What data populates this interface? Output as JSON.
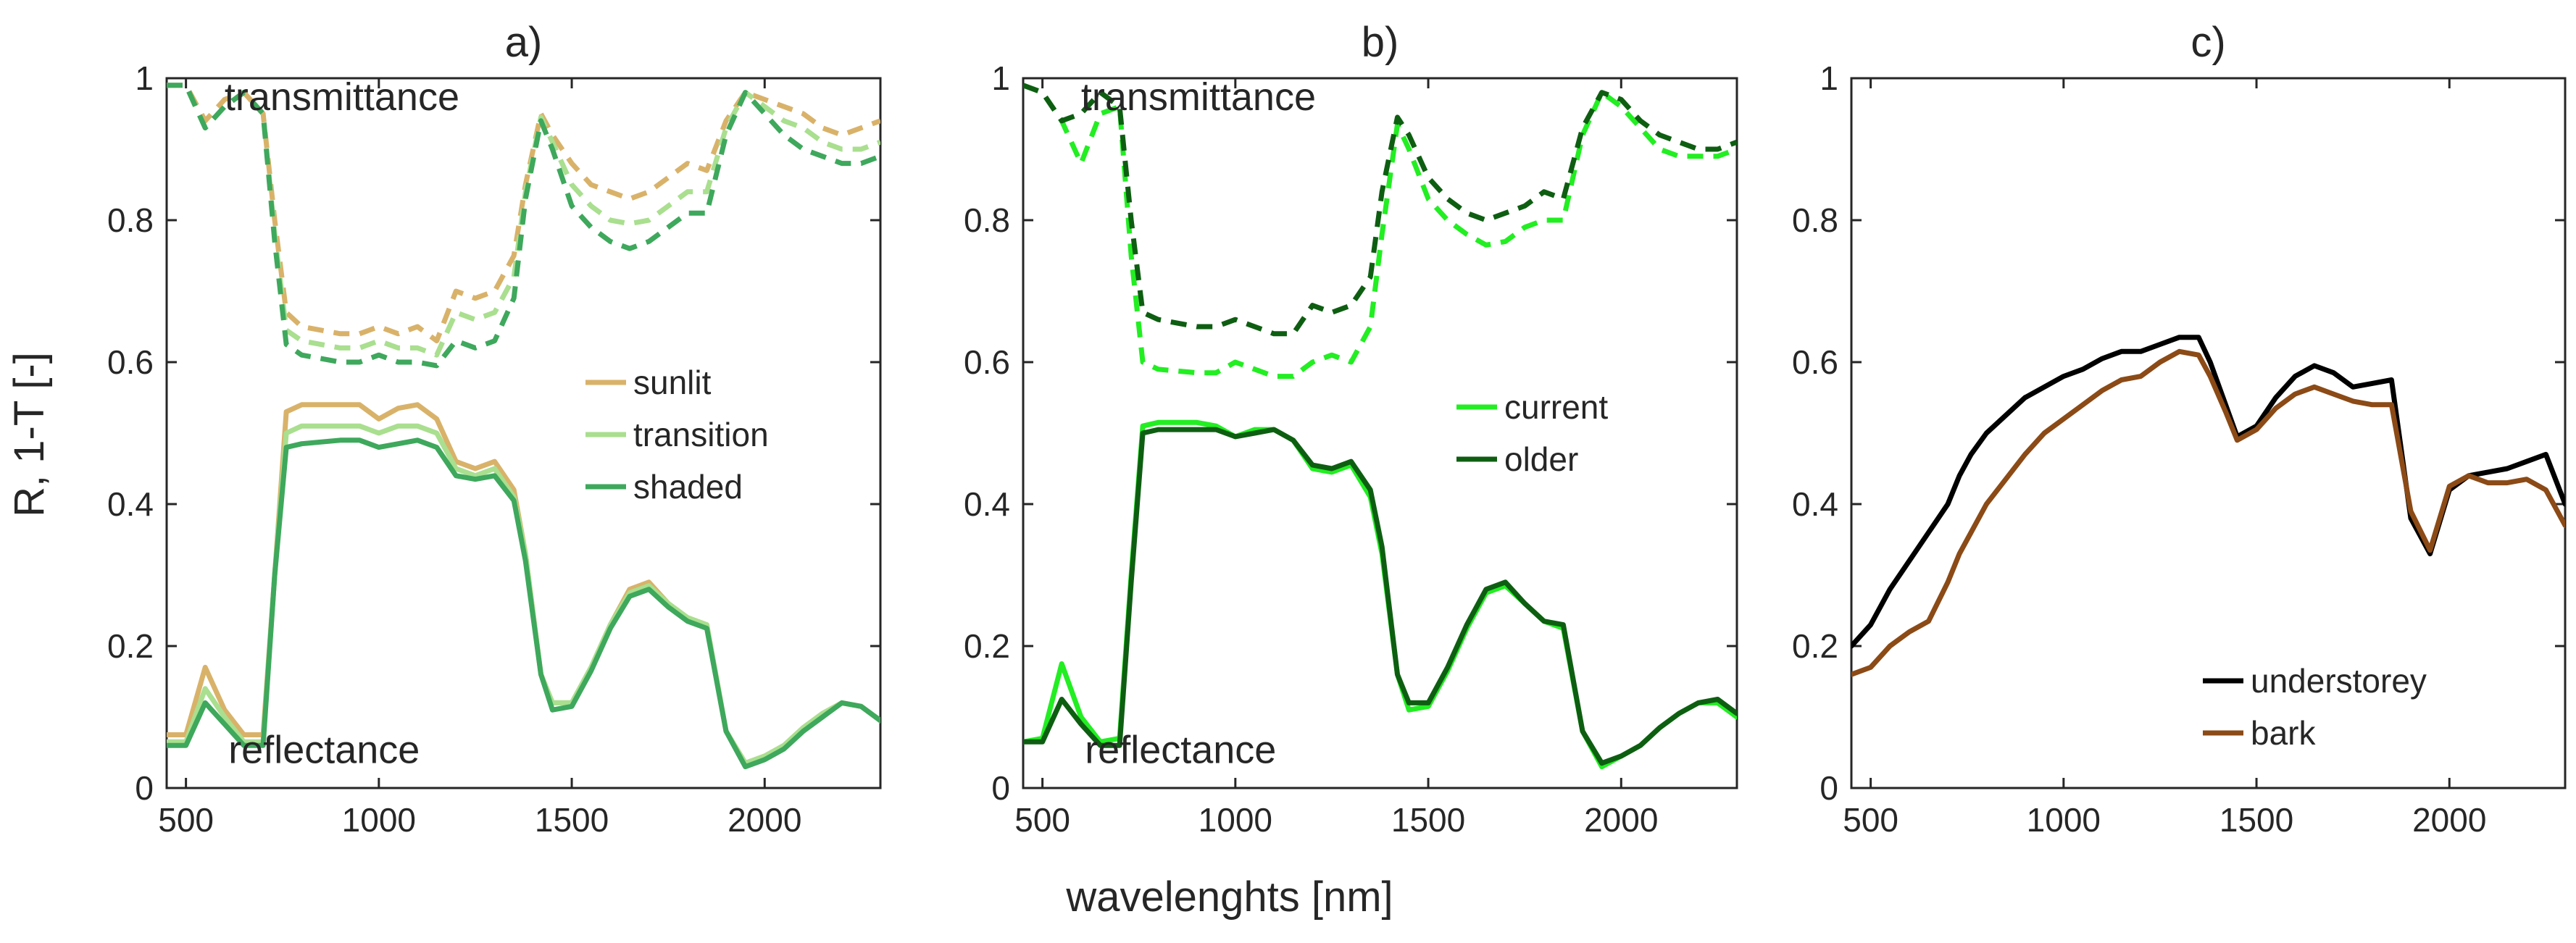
{
  "figure": {
    "ylabel": "R, 1-T [-]",
    "xlabel": "wavelenghts [nm]"
  },
  "chart_data": [
    {
      "type": "line",
      "title": "a)",
      "xlim": [
        450,
        2300
      ],
      "ylim": [
        0,
        1
      ],
      "xticks": [
        500,
        1000,
        1500,
        2000
      ],
      "yticks": [
        0,
        0.2,
        0.4,
        0.6,
        0.8,
        1
      ],
      "ytick_labels": [
        "0",
        "0.2",
        "0.4",
        "0.6",
        "0.8",
        "1"
      ],
      "x": [
        450,
        500,
        550,
        600,
        650,
        700,
        730,
        760,
        800,
        900,
        950,
        1000,
        1050,
        1100,
        1150,
        1200,
        1250,
        1300,
        1350,
        1380,
        1420,
        1450,
        1500,
        1550,
        1600,
        1650,
        1700,
        1750,
        1800,
        1850,
        1900,
        1950,
        2000,
        2050,
        2100,
        2150,
        2200,
        2250,
        2300
      ],
      "annotations": [
        {
          "text": "transmittance",
          "x": 600,
          "y": 0.955
        },
        {
          "text": "reflectance",
          "x": 610,
          "y": 0.035
        }
      ],
      "legend": {
        "position": "middle-right",
        "entries": [
          "sunlit",
          "transition",
          "shaded"
        ]
      },
      "series": [
        {
          "name": "sunlit",
          "kind": "reflectance",
          "style": "solid",
          "color": "#d9b26a",
          "values": [
            0.075,
            0.075,
            0.17,
            0.11,
            0.075,
            0.075,
            0.3,
            0.53,
            0.54,
            0.54,
            0.54,
            0.52,
            0.535,
            0.54,
            0.52,
            0.46,
            0.45,
            0.46,
            0.42,
            0.33,
            0.16,
            0.12,
            0.12,
            0.17,
            0.23,
            0.28,
            0.29,
            0.26,
            0.24,
            0.23,
            0.08,
            0.035,
            0.045,
            0.06,
            0.085,
            0.105,
            0.12,
            0.115,
            0.095
          ]
        },
        {
          "name": "transition",
          "kind": "reflectance",
          "style": "solid",
          "color": "#a9df8f",
          "values": [
            0.065,
            0.065,
            0.14,
            0.1,
            0.065,
            0.065,
            0.3,
            0.5,
            0.51,
            0.51,
            0.51,
            0.5,
            0.51,
            0.51,
            0.5,
            0.45,
            0.44,
            0.45,
            0.41,
            0.33,
            0.16,
            0.12,
            0.12,
            0.17,
            0.23,
            0.275,
            0.285,
            0.26,
            0.24,
            0.23,
            0.08,
            0.035,
            0.045,
            0.06,
            0.085,
            0.105,
            0.12,
            0.115,
            0.095
          ]
        },
        {
          "name": "shaded",
          "kind": "reflectance",
          "style": "solid",
          "color": "#3ea85c",
          "values": [
            0.06,
            0.06,
            0.12,
            0.09,
            0.06,
            0.06,
            0.3,
            0.48,
            0.485,
            0.49,
            0.49,
            0.48,
            0.485,
            0.49,
            0.48,
            0.44,
            0.435,
            0.44,
            0.405,
            0.32,
            0.16,
            0.11,
            0.115,
            0.165,
            0.225,
            0.27,
            0.28,
            0.255,
            0.235,
            0.225,
            0.08,
            0.03,
            0.04,
            0.055,
            0.08,
            0.1,
            0.12,
            0.115,
            0.095
          ]
        },
        {
          "name": "sunlit",
          "kind": "transmittance",
          "style": "dashed",
          "color": "#d9b26a",
          "values": [
            0.99,
            0.99,
            0.94,
            0.97,
            0.98,
            0.95,
            0.8,
            0.67,
            0.65,
            0.64,
            0.64,
            0.65,
            0.64,
            0.65,
            0.63,
            0.7,
            0.69,
            0.7,
            0.75,
            0.85,
            0.95,
            0.92,
            0.88,
            0.85,
            0.84,
            0.83,
            0.84,
            0.86,
            0.88,
            0.87,
            0.94,
            0.98,
            0.97,
            0.96,
            0.95,
            0.93,
            0.92,
            0.93,
            0.94
          ]
        },
        {
          "name": "transition",
          "kind": "transmittance",
          "style": "dashed",
          "color": "#a9df8f",
          "values": [
            0.99,
            0.99,
            0.93,
            0.96,
            0.98,
            0.95,
            0.78,
            0.645,
            0.63,
            0.62,
            0.62,
            0.63,
            0.62,
            0.62,
            0.61,
            0.67,
            0.66,
            0.67,
            0.72,
            0.84,
            0.945,
            0.91,
            0.85,
            0.82,
            0.8,
            0.795,
            0.8,
            0.82,
            0.84,
            0.84,
            0.93,
            0.98,
            0.96,
            0.94,
            0.93,
            0.91,
            0.9,
            0.9,
            0.91
          ]
        },
        {
          "name": "shaded",
          "kind": "transmittance",
          "style": "dashed",
          "color": "#3ea85c",
          "values": [
            0.99,
            0.99,
            0.93,
            0.96,
            0.98,
            0.95,
            0.77,
            0.625,
            0.61,
            0.6,
            0.6,
            0.61,
            0.6,
            0.6,
            0.595,
            0.63,
            0.62,
            0.63,
            0.69,
            0.83,
            0.94,
            0.9,
            0.82,
            0.79,
            0.77,
            0.76,
            0.77,
            0.79,
            0.81,
            0.81,
            0.92,
            0.98,
            0.95,
            0.92,
            0.9,
            0.89,
            0.88,
            0.88,
            0.89
          ]
        }
      ]
    },
    {
      "type": "line",
      "title": "b)",
      "xlim": [
        450,
        2300
      ],
      "ylim": [
        0,
        1
      ],
      "xticks": [
        500,
        1000,
        1500,
        2000
      ],
      "yticks": [
        0,
        0.2,
        0.4,
        0.6,
        0.8,
        1
      ],
      "ytick_labels": [
        "0",
        "0.2",
        "0.4",
        "0.6",
        "0.8",
        "1"
      ],
      "x": [
        450,
        500,
        550,
        600,
        650,
        700,
        730,
        760,
        800,
        900,
        950,
        1000,
        1050,
        1100,
        1150,
        1200,
        1250,
        1300,
        1350,
        1380,
        1420,
        1450,
        1500,
        1550,
        1600,
        1650,
        1700,
        1750,
        1800,
        1850,
        1900,
        1950,
        2000,
        2050,
        2100,
        2150,
        2200,
        2250,
        2300
      ],
      "annotations": [
        {
          "text": "transmittance",
          "x": 600,
          "y": 0.955
        },
        {
          "text": "reflectance",
          "x": 610,
          "y": 0.035
        }
      ],
      "legend": {
        "position": "middle-right",
        "entries": [
          "current",
          "older"
        ]
      },
      "series": [
        {
          "name": "current",
          "kind": "reflectance",
          "style": "solid",
          "color": "#22ee22",
          "values": [
            0.065,
            0.07,
            0.175,
            0.1,
            0.065,
            0.07,
            0.3,
            0.51,
            0.515,
            0.515,
            0.51,
            0.495,
            0.505,
            0.505,
            0.49,
            0.45,
            0.445,
            0.455,
            0.41,
            0.33,
            0.16,
            0.11,
            0.115,
            0.165,
            0.225,
            0.275,
            0.285,
            0.26,
            0.235,
            0.225,
            0.08,
            0.03,
            0.045,
            0.06,
            0.085,
            0.105,
            0.12,
            0.12,
            0.1
          ]
        },
        {
          "name": "older",
          "kind": "reflectance",
          "style": "solid",
          "color": "#0e5e12",
          "values": [
            0.065,
            0.065,
            0.125,
            0.09,
            0.06,
            0.06,
            0.29,
            0.5,
            0.505,
            0.505,
            0.505,
            0.495,
            0.5,
            0.505,
            0.49,
            0.455,
            0.45,
            0.46,
            0.42,
            0.34,
            0.16,
            0.12,
            0.12,
            0.17,
            0.23,
            0.28,
            0.29,
            0.26,
            0.235,
            0.23,
            0.08,
            0.035,
            0.045,
            0.06,
            0.085,
            0.105,
            0.12,
            0.125,
            0.105
          ]
        },
        {
          "name": "current",
          "kind": "transmittance",
          "style": "dashed",
          "color": "#22ee22",
          "values": [
            0.99,
            0.98,
            0.94,
            0.88,
            0.95,
            0.96,
            0.75,
            0.6,
            0.59,
            0.585,
            0.585,
            0.6,
            0.59,
            0.58,
            0.58,
            0.6,
            0.61,
            0.6,
            0.65,
            0.78,
            0.935,
            0.9,
            0.83,
            0.8,
            0.78,
            0.765,
            0.77,
            0.79,
            0.8,
            0.8,
            0.92,
            0.98,
            0.96,
            0.93,
            0.9,
            0.89,
            0.89,
            0.89,
            0.9
          ]
        },
        {
          "name": "older",
          "kind": "transmittance",
          "style": "dashed",
          "color": "#0e5e12",
          "values": [
            0.99,
            0.98,
            0.94,
            0.95,
            0.98,
            0.96,
            0.8,
            0.67,
            0.66,
            0.65,
            0.65,
            0.66,
            0.65,
            0.64,
            0.64,
            0.68,
            0.67,
            0.68,
            0.72,
            0.84,
            0.945,
            0.92,
            0.86,
            0.83,
            0.81,
            0.8,
            0.81,
            0.82,
            0.84,
            0.83,
            0.93,
            0.98,
            0.97,
            0.94,
            0.92,
            0.91,
            0.9,
            0.9,
            0.91
          ]
        }
      ]
    },
    {
      "type": "line",
      "title": "c)",
      "xlim": [
        450,
        2300
      ],
      "ylim": [
        0,
        1
      ],
      "xticks": [
        500,
        1000,
        1500,
        2000
      ],
      "yticks": [
        0,
        0.2,
        0.4,
        0.6,
        0.8,
        1
      ],
      "ytick_labels": [
        "0",
        "0.2",
        "0.4",
        "0.6",
        "0.8",
        "1"
      ],
      "x": [
        450,
        500,
        550,
        600,
        650,
        700,
        730,
        760,
        800,
        900,
        950,
        1000,
        1050,
        1100,
        1150,
        1200,
        1250,
        1300,
        1350,
        1380,
        1420,
        1450,
        1500,
        1550,
        1600,
        1650,
        1700,
        1750,
        1800,
        1850,
        1900,
        1950,
        2000,
        2050,
        2100,
        2150,
        2200,
        2250,
        2300
      ],
      "annotations": [],
      "legend": {
        "position": "bottom-right",
        "entries": [
          "understorey",
          "bark"
        ]
      },
      "series": [
        {
          "name": "understorey",
          "kind": "reflectance",
          "style": "solid",
          "color": "#000000",
          "values": [
            0.2,
            0.23,
            0.28,
            0.32,
            0.36,
            0.4,
            0.44,
            0.47,
            0.5,
            0.55,
            0.565,
            0.58,
            0.59,
            0.605,
            0.615,
            0.615,
            0.625,
            0.635,
            0.635,
            0.6,
            0.54,
            0.495,
            0.51,
            0.55,
            0.58,
            0.595,
            0.585,
            0.565,
            0.57,
            0.575,
            0.38,
            0.33,
            0.42,
            0.44,
            0.445,
            0.45,
            0.46,
            0.47,
            0.4
          ]
        },
        {
          "name": "bark",
          "kind": "reflectance",
          "style": "solid",
          "color": "#8b4a16",
          "values": [
            0.16,
            0.17,
            0.2,
            0.22,
            0.235,
            0.29,
            0.33,
            0.36,
            0.4,
            0.47,
            0.5,
            0.52,
            0.54,
            0.56,
            0.575,
            0.58,
            0.6,
            0.615,
            0.61,
            0.58,
            0.53,
            0.49,
            0.505,
            0.535,
            0.555,
            0.565,
            0.555,
            0.545,
            0.54,
            0.54,
            0.39,
            0.335,
            0.425,
            0.44,
            0.43,
            0.43,
            0.435,
            0.42,
            0.37
          ]
        }
      ]
    }
  ]
}
